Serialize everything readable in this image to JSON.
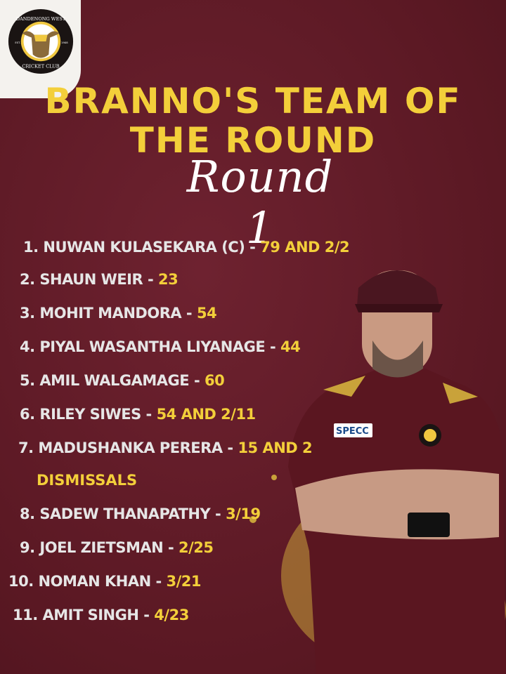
{
  "logo": {
    "top_text": "DANDENONG WEST",
    "bottom_text": "CRICKET CLUB",
    "left_text": "EST.",
    "right_text": "1908"
  },
  "title": {
    "line1": "BRANNO'S TEAM OF",
    "line2": "THE ROUND",
    "subtitle": "Round 1"
  },
  "team": [
    {
      "num": "1.",
      "name": "NUWAN KULASEKARA (C)",
      "stat": "79 AND 2/2"
    },
    {
      "num": "2.",
      "name": "SHAUN WEIR",
      "stat": "23"
    },
    {
      "num": "3.",
      "name": "MOHIT MANDORA",
      "stat": "54"
    },
    {
      "num": "4.",
      "name": "PIYAL WASANTHA LIYANAGE",
      "stat": "44"
    },
    {
      "num": "5.",
      "name": "AMIL WALGAMAGE",
      "stat": "60"
    },
    {
      "num": "6.",
      "name": "RILEY SIWES",
      "stat": "54 AND 2/11"
    },
    {
      "num": "7.",
      "name": "MADUSHANKA PERERA",
      "stat": "15 AND 2",
      "stat_cont": "DISMISSALS"
    },
    {
      "num": "8.",
      "name": "SADEW THANAPATHY",
      "stat": "3/19"
    },
    {
      "num": "9.",
      "name": "JOEL ZIETSMAN",
      "stat": "2/25"
    },
    {
      "num": "10.",
      "name": "NOMAN KHAN",
      "stat": "3/21"
    },
    {
      "num": "11.",
      "name": "AMIT SINGH",
      "stat": "4/23"
    }
  ],
  "sponsor": "SPECC",
  "colors": {
    "background": "#5e1a26",
    "accent": "#f3cf3a",
    "text": "#e6e6e6"
  }
}
